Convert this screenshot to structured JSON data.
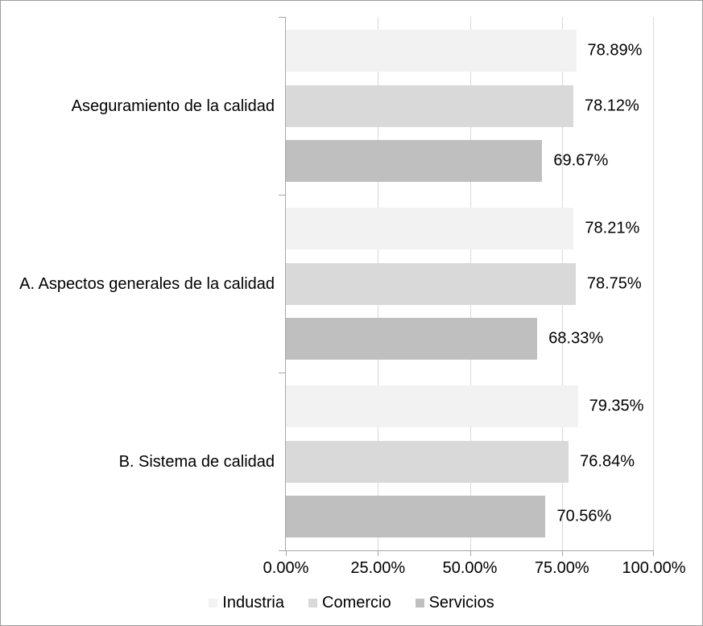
{
  "chart_data": {
    "type": "bar",
    "orientation": "horizontal",
    "title": "",
    "categories": [
      "Aseguramiento de la calidad",
      "A. Aspectos generales de la calidad",
      "B. Sistema de calidad"
    ],
    "series": [
      {
        "name": "Industria",
        "color": "#f2f2f2",
        "values": [
          78.89,
          78.21,
          79.35
        ],
        "labels": [
          "78.89%",
          "78.21%",
          "79.35%"
        ]
      },
      {
        "name": "Comercio",
        "color": "#d9d9d9",
        "values": [
          78.12,
          78.75,
          76.84
        ],
        "labels": [
          "78.12%",
          "78.75%",
          "76.84%"
        ]
      },
      {
        "name": "Servicios",
        "color": "#bfbfbf",
        "values": [
          69.67,
          68.33,
          70.56
        ],
        "labels": [
          "69.67%",
          "68.33%",
          "70.56%"
        ]
      }
    ],
    "x_axis": {
      "min": 0,
      "max": 100,
      "ticks": [
        "0.00%",
        "25.00%",
        "50.00%",
        "75.00%",
        "100.00%"
      ],
      "grid": true
    },
    "legend_position": "bottom",
    "colors": {
      "axis": "#a6a6a6",
      "gridline": "#d9d9d9",
      "text": "#000000",
      "frame_border": "#9d9d9d"
    }
  }
}
